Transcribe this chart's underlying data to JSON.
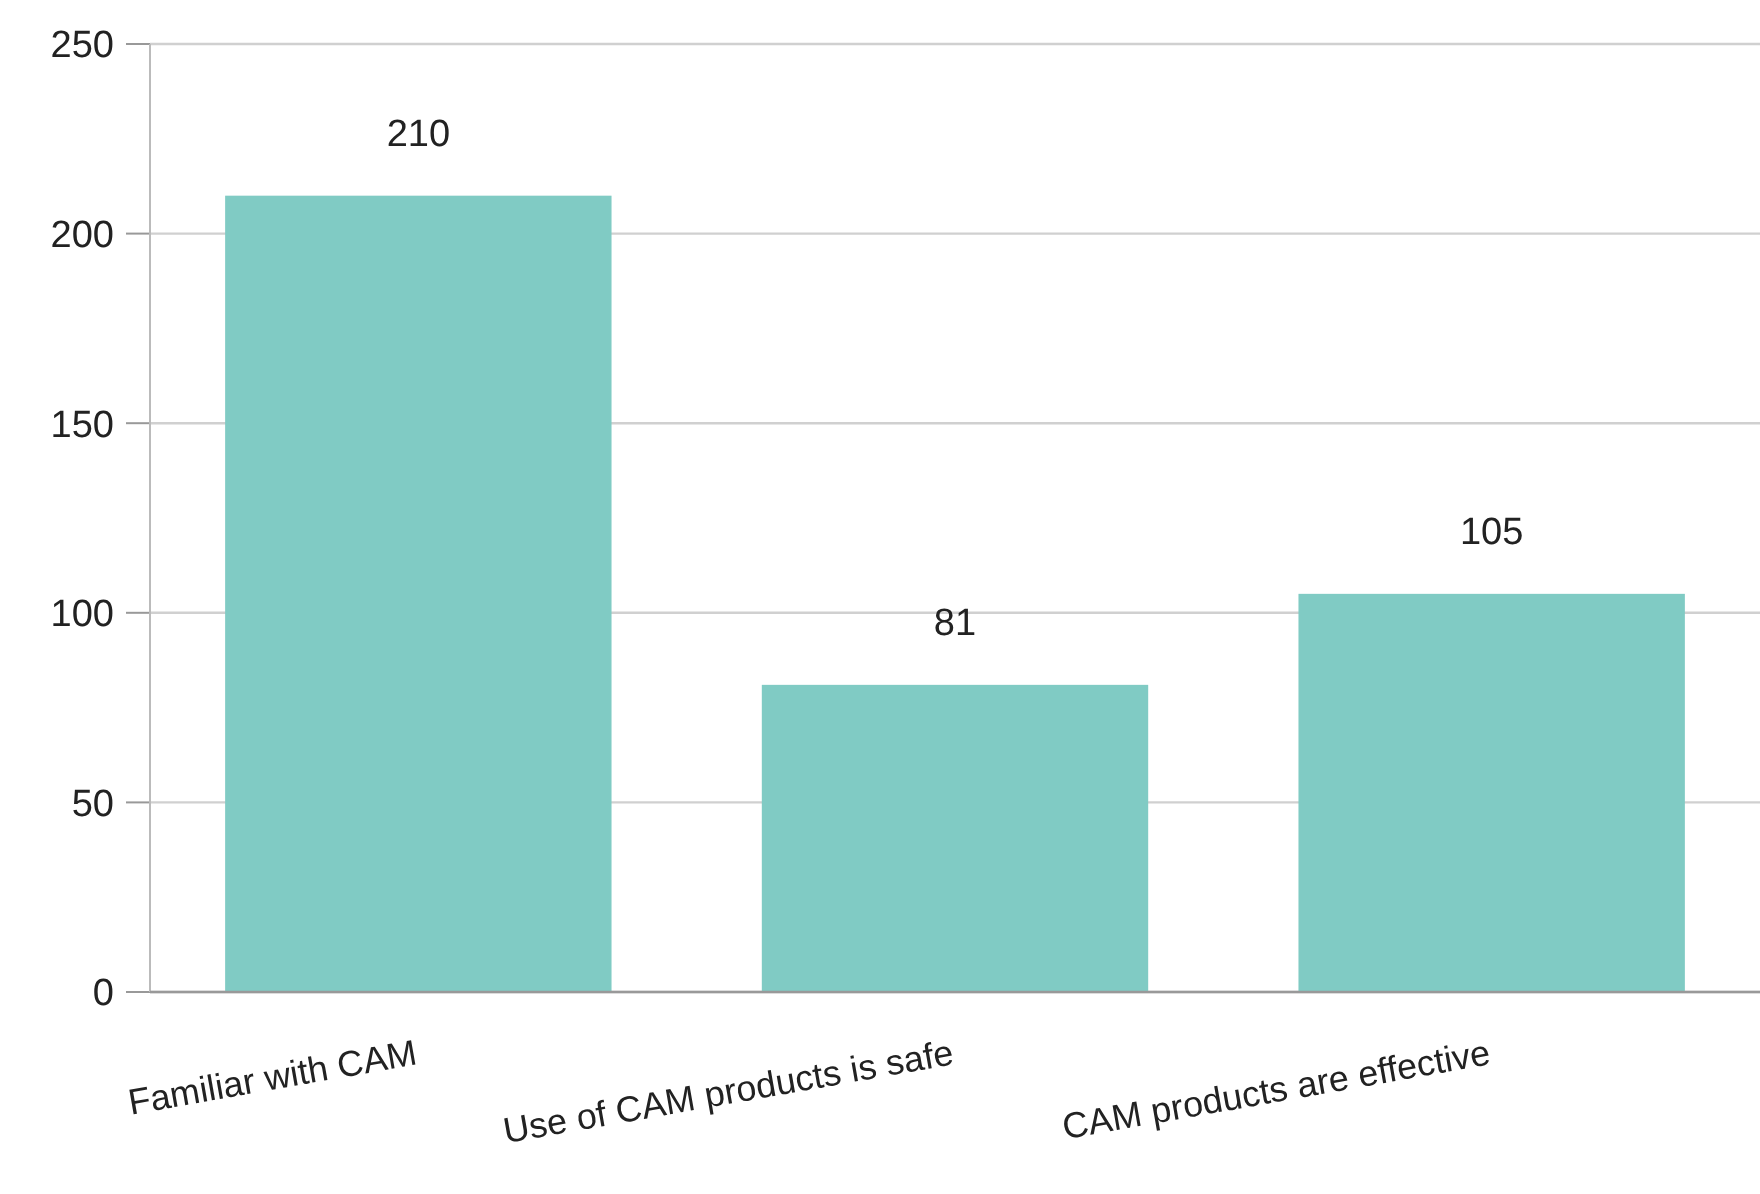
{
  "chart_data": {
    "type": "bar",
    "categories": [
      "Familiar with CAM",
      "Use of CAM products is safe",
      "CAM products are effective"
    ],
    "values": [
      210,
      81,
      105
    ],
    "color": "#80cbc4",
    "ylim": [
      0,
      250
    ],
    "yticks": [
      0,
      50,
      100,
      150,
      200,
      250
    ],
    "grid": "y",
    "data_labels": true
  }
}
